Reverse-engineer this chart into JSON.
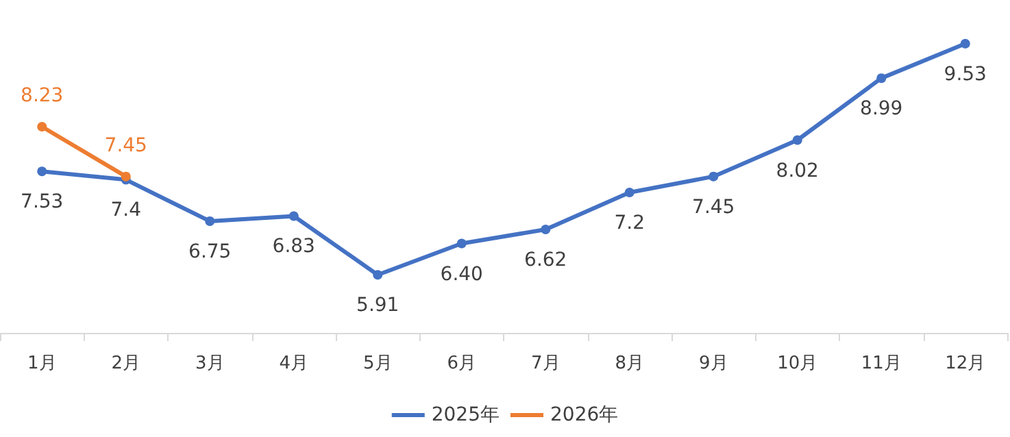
{
  "chart_data": {
    "type": "line",
    "categories": [
      "1月",
      "2月",
      "3月",
      "4月",
      "5月",
      "6月",
      "7月",
      "8月",
      "9月",
      "10月",
      "11月",
      "12月"
    ],
    "series": [
      {
        "name": "2025年",
        "color": "#4472c4",
        "values": [
          7.53,
          7.4,
          6.75,
          6.83,
          5.91,
          6.4,
          6.62,
          7.2,
          7.45,
          8.02,
          8.99,
          9.53
        ],
        "value_labels": [
          "7.53",
          "7.4",
          "6.75",
          "6.83",
          "5.91",
          "6.40",
          "6.62",
          "7.2",
          "7.45",
          "8.02",
          "8.99",
          "9.53"
        ]
      },
      {
        "name": "2026年",
        "color": "#ed7d31",
        "values": [
          8.23,
          7.45,
          null,
          null,
          null,
          null,
          null,
          null,
          null,
          null,
          null,
          null
        ],
        "value_labels": [
          "8.23",
          "7.45",
          null,
          null,
          null,
          null,
          null,
          null,
          null,
          null,
          null,
          null
        ]
      }
    ],
    "tick_labels": "x",
    "grid": false,
    "legend": "bottom",
    "marker": "circle",
    "line_style": "solid"
  }
}
